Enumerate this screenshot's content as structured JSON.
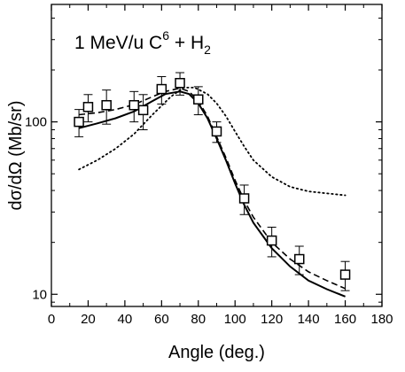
{
  "chart_data": {
    "type": "scatter",
    "title": "",
    "annotation": {
      "prefix": "1 MeV/u C",
      "sup": "6",
      "mid": " + H",
      "sub": "2"
    },
    "xlabel": "Angle (deg.)",
    "ylabel": "dσ/dΩ (Mb/sr)",
    "xlim": [
      0,
      180
    ],
    "ylim": [
      8.5,
      480
    ],
    "yscale": "log",
    "x_ticks": [
      0,
      20,
      40,
      60,
      80,
      100,
      120,
      140,
      160,
      180
    ],
    "x_tick_labels": [
      "0",
      "20",
      "40",
      "60",
      "80",
      "100",
      "120",
      "140",
      "160",
      "180"
    ],
    "y_ticks": [
      10,
      100
    ],
    "y_tick_labels": [
      "10",
      "100"
    ],
    "grid": false,
    "series": [
      {
        "style": "markers-open-square-errorbars",
        "points": [
          {
            "x": 15,
            "y": 100,
            "err": 18
          },
          {
            "x": 20,
            "y": 122,
            "err": 22
          },
          {
            "x": 30,
            "y": 125,
            "err": 28
          },
          {
            "x": 45,
            "y": 125,
            "err": 25
          },
          {
            "x": 50,
            "y": 117,
            "err": 27
          },
          {
            "x": 60,
            "y": 155,
            "err": 28
          },
          {
            "x": 70,
            "y": 168,
            "err": 25
          },
          {
            "x": 80,
            "y": 135,
            "err": 25
          },
          {
            "x": 90,
            "y": 88,
            "err": 12
          },
          {
            "x": 105,
            "y": 36,
            "err": 7
          },
          {
            "x": 120,
            "y": 20.5,
            "err": 4
          },
          {
            "x": 135,
            "y": 16,
            "err": 3
          },
          {
            "x": 160,
            "y": 13,
            "err": 2.5
          }
        ]
      },
      {
        "style": "solid-line",
        "points": [
          {
            "x": 15,
            "y": 92
          },
          {
            "x": 25,
            "y": 98
          },
          {
            "x": 35,
            "y": 105
          },
          {
            "x": 45,
            "y": 115
          },
          {
            "x": 55,
            "y": 132
          },
          {
            "x": 62,
            "y": 145
          },
          {
            "x": 70,
            "y": 150
          },
          {
            "x": 75,
            "y": 145
          },
          {
            "x": 80,
            "y": 128
          },
          {
            "x": 85,
            "y": 105
          },
          {
            "x": 90,
            "y": 80
          },
          {
            "x": 95,
            "y": 60
          },
          {
            "x": 100,
            "y": 44
          },
          {
            "x": 105,
            "y": 33
          },
          {
            "x": 110,
            "y": 26
          },
          {
            "x": 120,
            "y": 18.5
          },
          {
            "x": 130,
            "y": 14.5
          },
          {
            "x": 140,
            "y": 12
          },
          {
            "x": 150,
            "y": 10.7
          },
          {
            "x": 160,
            "y": 9.7
          }
        ]
      },
      {
        "style": "dashed-line",
        "points": [
          {
            "x": 15,
            "y": 110
          },
          {
            "x": 25,
            "y": 113
          },
          {
            "x": 35,
            "y": 118
          },
          {
            "x": 45,
            "y": 126
          },
          {
            "x": 55,
            "y": 140
          },
          {
            "x": 62,
            "y": 150
          },
          {
            "x": 70,
            "y": 157
          },
          {
            "x": 75,
            "y": 150
          },
          {
            "x": 80,
            "y": 132
          },
          {
            "x": 85,
            "y": 108
          },
          {
            "x": 90,
            "y": 82
          },
          {
            "x": 95,
            "y": 62
          },
          {
            "x": 100,
            "y": 46
          },
          {
            "x": 105,
            "y": 35
          },
          {
            "x": 110,
            "y": 28
          },
          {
            "x": 120,
            "y": 20
          },
          {
            "x": 130,
            "y": 16
          },
          {
            "x": 140,
            "y": 13.5
          },
          {
            "x": 150,
            "y": 12
          },
          {
            "x": 160,
            "y": 10.8
          }
        ]
      },
      {
        "style": "dotted-line",
        "points": [
          {
            "x": 15,
            "y": 53
          },
          {
            "x": 25,
            "y": 60
          },
          {
            "x": 35,
            "y": 70
          },
          {
            "x": 45,
            "y": 85
          },
          {
            "x": 55,
            "y": 110
          },
          {
            "x": 65,
            "y": 140
          },
          {
            "x": 72,
            "y": 158
          },
          {
            "x": 78,
            "y": 158
          },
          {
            "x": 85,
            "y": 145
          },
          {
            "x": 90,
            "y": 128
          },
          {
            "x": 95,
            "y": 108
          },
          {
            "x": 100,
            "y": 88
          },
          {
            "x": 105,
            "y": 72
          },
          {
            "x": 110,
            "y": 60
          },
          {
            "x": 120,
            "y": 48
          },
          {
            "x": 130,
            "y": 42
          },
          {
            "x": 140,
            "y": 39.5
          },
          {
            "x": 150,
            "y": 38.5
          },
          {
            "x": 160,
            "y": 37.5
          }
        ]
      }
    ]
  }
}
